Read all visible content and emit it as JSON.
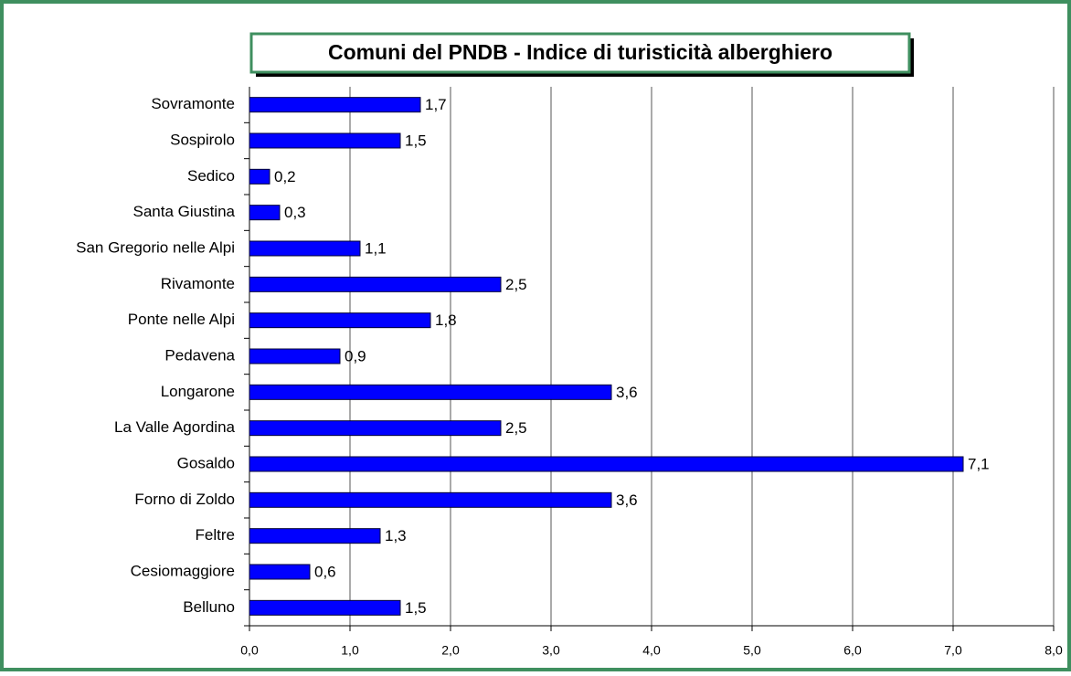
{
  "chart_data": {
    "type": "bar",
    "orientation": "horizontal",
    "title": "Comuni del PNDB - Indice di turisticità alberghiero",
    "categories": [
      "Belluno",
      "Cesiomaggiore",
      "Feltre",
      "Forno di Zoldo",
      "Gosaldo",
      "La Valle Agordina",
      "Longarone",
      "Pedavena",
      "Ponte nelle Alpi",
      "Rivamonte",
      "San Gregorio nelle Alpi",
      "Santa Giustina",
      "Sedico",
      "Sospirolo",
      "Sovramonte"
    ],
    "values": [
      1.5,
      0.6,
      1.3,
      3.6,
      7.1,
      2.5,
      3.6,
      0.9,
      1.8,
      2.5,
      1.1,
      0.3,
      0.2,
      1.5,
      1.7
    ],
    "value_labels": [
      "1,5",
      "0,6",
      "1,3",
      "3,6",
      "7,1",
      "2,5",
      "3,6",
      "0,9",
      "1,8",
      "2,5",
      "1,1",
      "0,3",
      "0,2",
      "1,5",
      "1,7"
    ],
    "color": "#0000ff",
    "xlim": [
      0,
      8
    ],
    "xticks": [
      {
        "value": 0,
        "label": "0,0"
      },
      {
        "value": 1,
        "label": "1,0"
      },
      {
        "value": 2,
        "label": "2,0"
      },
      {
        "value": 3,
        "label": "3,0"
      },
      {
        "value": 4,
        "label": "4,0"
      },
      {
        "value": 5,
        "label": "5,0"
      },
      {
        "value": 6,
        "label": "6,0"
      },
      {
        "value": 7,
        "label": "7,0"
      },
      {
        "value": 8,
        "label": "8,0"
      }
    ],
    "grid": true
  }
}
